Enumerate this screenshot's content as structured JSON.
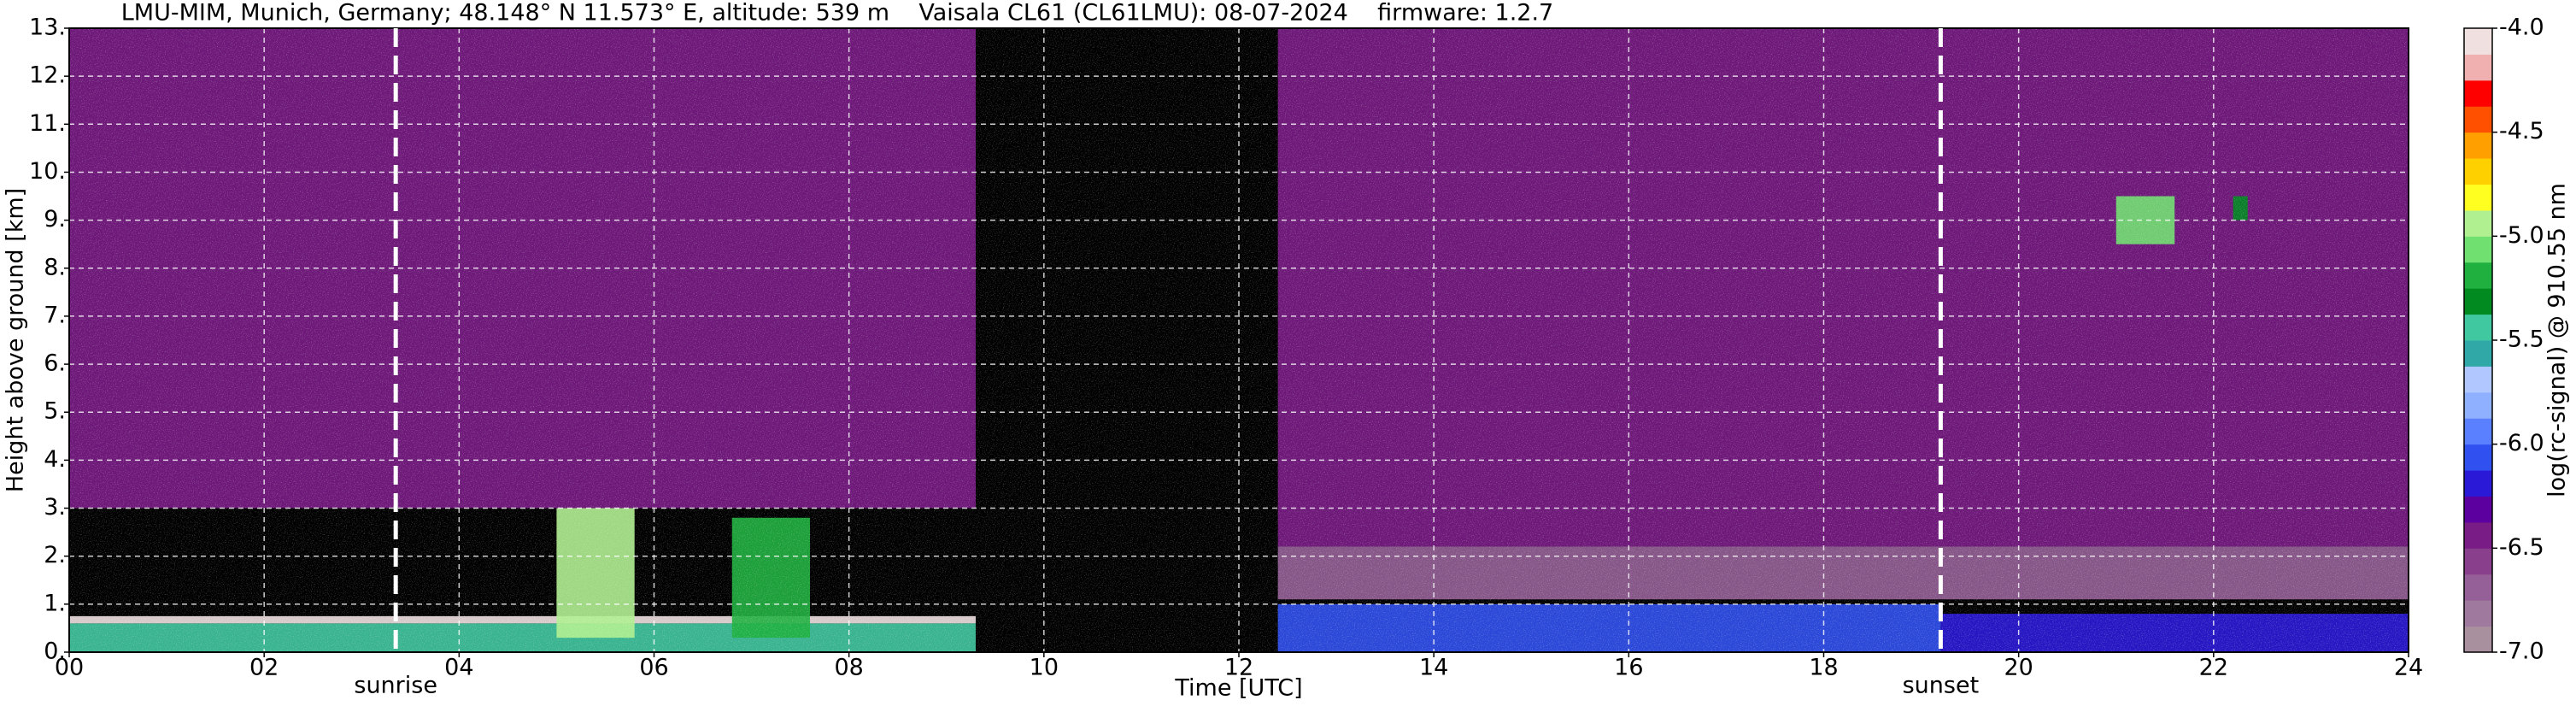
{
  "chart_data": {
    "type": "heatmap",
    "title": "LMU-MIM, Munich, Germany; 48.148° N 11.573° E, altitude: 539 m    Vaisala CL61 (CL61LMU): 08-07-2024    firmware: 1.2.7",
    "x_label": "Time [UTC]",
    "y_label": "Height above ground [km]",
    "colorbar_label": "log(rc-signal) @ 910.55 nm",
    "xlim": [
      0,
      24
    ],
    "ylim": [
      0,
      13
    ],
    "xticks": [
      {
        "value": 0,
        "label": "00"
      },
      {
        "value": 2,
        "label": "02"
      },
      {
        "value": 4,
        "label": "04"
      },
      {
        "value": 6,
        "label": "06"
      },
      {
        "value": 8,
        "label": "08"
      },
      {
        "value": 10,
        "label": "10"
      },
      {
        "value": 12,
        "label": "12"
      },
      {
        "value": 14,
        "label": "14"
      },
      {
        "value": 16,
        "label": "16"
      },
      {
        "value": 18,
        "label": "18"
      },
      {
        "value": 20,
        "label": "20"
      },
      {
        "value": 22,
        "label": "22"
      },
      {
        "value": 24,
        "label": "24"
      }
    ],
    "yticks": [
      {
        "value": 0,
        "label": "0."
      },
      {
        "value": 1,
        "label": "1."
      },
      {
        "value": 2,
        "label": "2."
      },
      {
        "value": 3,
        "label": "3."
      },
      {
        "value": 4,
        "label": "4."
      },
      {
        "value": 5,
        "label": "5."
      },
      {
        "value": 6,
        "label": "6."
      },
      {
        "value": 7,
        "label": "7."
      },
      {
        "value": 8,
        "label": "8."
      },
      {
        "value": 9,
        "label": "9."
      },
      {
        "value": 10,
        "label": "10."
      },
      {
        "value": 11,
        "label": "11."
      },
      {
        "value": 12,
        "label": "12."
      },
      {
        "value": 13,
        "label": "13."
      }
    ],
    "grid": true,
    "clim": [
      -7.0,
      -4.0
    ],
    "cticks": [
      {
        "value": -4.0,
        "label": "-4.0"
      },
      {
        "value": -4.5,
        "label": "-4.5"
      },
      {
        "value": -5.0,
        "label": "-5.0"
      },
      {
        "value": -5.5,
        "label": "-5.5"
      },
      {
        "value": -6.0,
        "label": "-6.0"
      },
      {
        "value": -6.5,
        "label": "-6.5"
      },
      {
        "value": -7.0,
        "label": "-7.0"
      }
    ],
    "colors": [
      "#a8909f",
      "#a07a9e",
      "#955f97",
      "#8a3f8d",
      "#7a1c86",
      "#5c00a0",
      "#2a1ad8",
      "#3050f0",
      "#5a80ff",
      "#8fb0ff",
      "#b0c8ff",
      "#30a8a8",
      "#40c8a0",
      "#008a20",
      "#20b040",
      "#70e070",
      "#b0f090",
      "#ffff20",
      "#ffd000",
      "#ffa000",
      "#ff5000",
      "#ff0000",
      "#f0b0b0",
      "#f0e0e0"
    ],
    "regions": [
      {
        "x": [
          0,
          9.3
        ],
        "y": [
          3.0,
          13
        ],
        "value": -6.5
      },
      {
        "x": [
          12.4,
          24
        ],
        "y": [
          2.2,
          13
        ],
        "value": -6.5
      },
      {
        "x": [
          12.4,
          24
        ],
        "y": [
          1.1,
          2.2
        ],
        "value": -6.7
      },
      {
        "x": [
          12.4,
          19.2
        ],
        "y": [
          0,
          1.0
        ],
        "value": -6.1
      },
      {
        "x": [
          19.2,
          24
        ],
        "y": [
          0,
          0.8
        ],
        "value": -6.2
      },
      {
        "x": [
          0,
          9.3
        ],
        "y": [
          0,
          0.6
        ],
        "value": -5.5
      },
      {
        "x": [
          0,
          9.3
        ],
        "y": [
          0.6,
          0.75
        ],
        "value": -4.1
      },
      {
        "x": [
          5.0,
          5.8
        ],
        "y": [
          0.3,
          3.0
        ],
        "value": -5.0
      },
      {
        "x": [
          6.8,
          7.6
        ],
        "y": [
          0.3,
          2.8
        ],
        "value": -5.2
      },
      {
        "x": [
          21.0,
          21.6
        ],
        "y": [
          8.5,
          9.5
        ],
        "value": -5.1
      },
      {
        "x": [
          22.2,
          22.35
        ],
        "y": [
          9.0,
          9.5
        ],
        "value": -5.3
      }
    ],
    "annotations": [
      {
        "x": 3.35,
        "label": "sunrise"
      },
      {
        "x": 19.2,
        "label": "sunset"
      }
    ]
  }
}
